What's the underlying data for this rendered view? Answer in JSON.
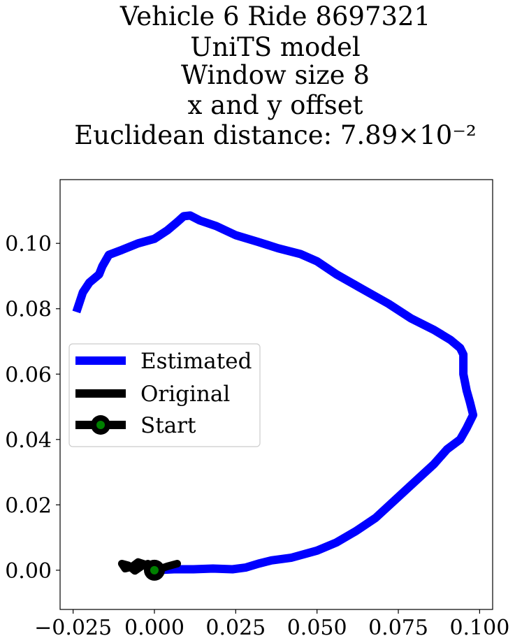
{
  "chart_data": {
    "type": "line",
    "title_lines": [
      "Vehicle 6 Ride 8697321",
      "UniTS model",
      "Window size 8",
      "x and y offset",
      "Euclidean distance: 7.89×10⁻²"
    ],
    "xlim": [
      -0.029,
      0.104
    ],
    "ylim": [
      -0.012,
      0.1195
    ],
    "x_ticks": [
      -0.025,
      0.0,
      0.025,
      0.05,
      0.075,
      0.1
    ],
    "x_tick_labels": [
      "−0.025",
      "0.000",
      "0.025",
      "0.050",
      "0.075",
      "0.100"
    ],
    "y_ticks": [
      0.0,
      0.02,
      0.04,
      0.06,
      0.08,
      0.1
    ],
    "y_tick_labels": [
      "0.00",
      "0.02",
      "0.04",
      "0.06",
      "0.08",
      "0.10"
    ],
    "grid": false,
    "legend": {
      "placement": "center-left",
      "entries": [
        "Estimated",
        "Original",
        "Start"
      ]
    },
    "series": [
      {
        "name": "Estimated",
        "color": "#0000ff",
        "x": [
          0.0,
          0.006,
          0.012,
          0.018,
          0.024,
          0.028,
          0.032,
          0.036,
          0.042,
          0.05,
          0.056,
          0.062,
          0.068,
          0.074,
          0.08,
          0.086,
          0.09,
          0.094,
          0.096,
          0.098,
          0.097,
          0.096,
          0.095,
          0.095,
          0.094,
          0.091,
          0.086,
          0.079,
          0.072,
          0.064,
          0.056,
          0.05,
          0.045,
          0.038,
          0.032,
          0.025,
          0.019,
          0.014,
          0.011,
          0.009,
          0.007,
          0.004,
          0.0,
          -0.005,
          -0.01,
          -0.014,
          -0.016,
          -0.017,
          -0.02,
          -0.022,
          -0.024
        ],
        "y": [
          0.0,
          0.0003,
          0.0003,
          0.0005,
          0.0003,
          0.0008,
          0.002,
          0.003,
          0.0038,
          0.006,
          0.0085,
          0.012,
          0.016,
          0.0215,
          0.027,
          0.0325,
          0.037,
          0.04,
          0.0435,
          0.0475,
          0.0515,
          0.055,
          0.06,
          0.066,
          0.068,
          0.0705,
          0.0735,
          0.077,
          0.0815,
          0.086,
          0.0905,
          0.0945,
          0.0967,
          0.0985,
          0.1004,
          0.1025,
          0.1053,
          0.107,
          0.1085,
          0.1083,
          0.1065,
          0.104,
          0.1014,
          0.1,
          0.098,
          0.0965,
          0.093,
          0.0905,
          0.088,
          0.085,
          0.079
        ]
      },
      {
        "name": "Original",
        "color": "#000000",
        "x": [
          0.0,
          -0.002,
          -0.005,
          -0.007,
          -0.009,
          -0.01,
          -0.008,
          -0.006,
          -0.004,
          -0.002,
          0.0,
          0.002,
          0.004,
          0.007
        ],
        "y": [
          0.0,
          0.0015,
          0.0025,
          0.001,
          0.0005,
          0.002,
          0.0015,
          -0.0002,
          0.0012,
          0.002,
          0.0008,
          0.0005,
          0.0012,
          0.002
        ]
      }
    ],
    "start_point": {
      "name": "Start",
      "x": 0.0,
      "y": 0.0,
      "outer_color": "#000000",
      "inner_color": "#008000"
    }
  }
}
